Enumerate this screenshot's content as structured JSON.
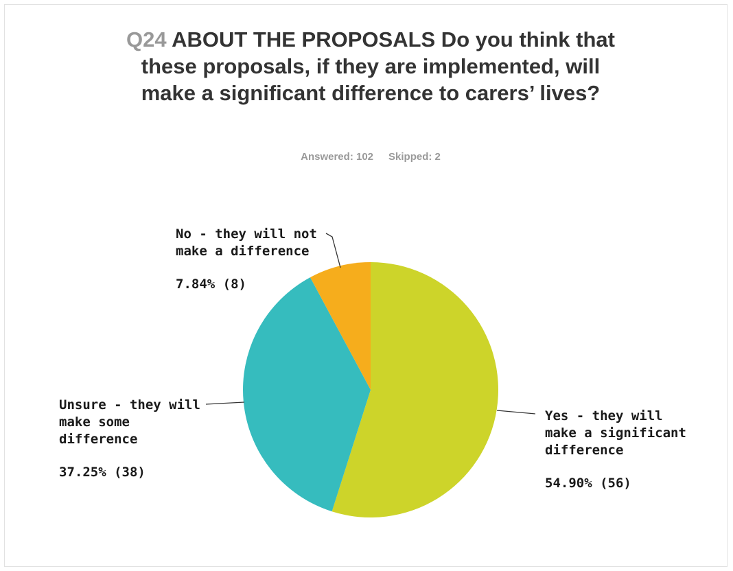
{
  "title": {
    "question_number": "Q24",
    "text": "ABOUT THE PROPOSALS Do you think that these proposals, if they are implemented, will make a significant difference to carers’ lives?"
  },
  "summary": {
    "answered": "Answered: 102",
    "skipped": "Skipped: 2"
  },
  "chart_data": {
    "type": "pie",
    "slices": [
      {
        "label": "Yes - they will make a significant difference",
        "label_lines": [
          "Yes - they will",
          "make a significant",
          "difference"
        ],
        "percent": 54.9,
        "count": 56,
        "value_label": "54.90% (56)",
        "color": "#cdd42a"
      },
      {
        "label": "Unsure - they will make some difference",
        "label_lines": [
          "Unsure - they will",
          "make some",
          "difference"
        ],
        "percent": 37.25,
        "count": 38,
        "value_label": "37.25% (38)",
        "color": "#36bcbe"
      },
      {
        "label": "No - they will not make a difference",
        "label_lines": [
          "No - they will not",
          "make a difference"
        ],
        "percent": 7.84,
        "count": 8,
        "value_label": "7.84% (8)",
        "color": "#f6ad1c"
      }
    ],
    "legend": "none"
  }
}
